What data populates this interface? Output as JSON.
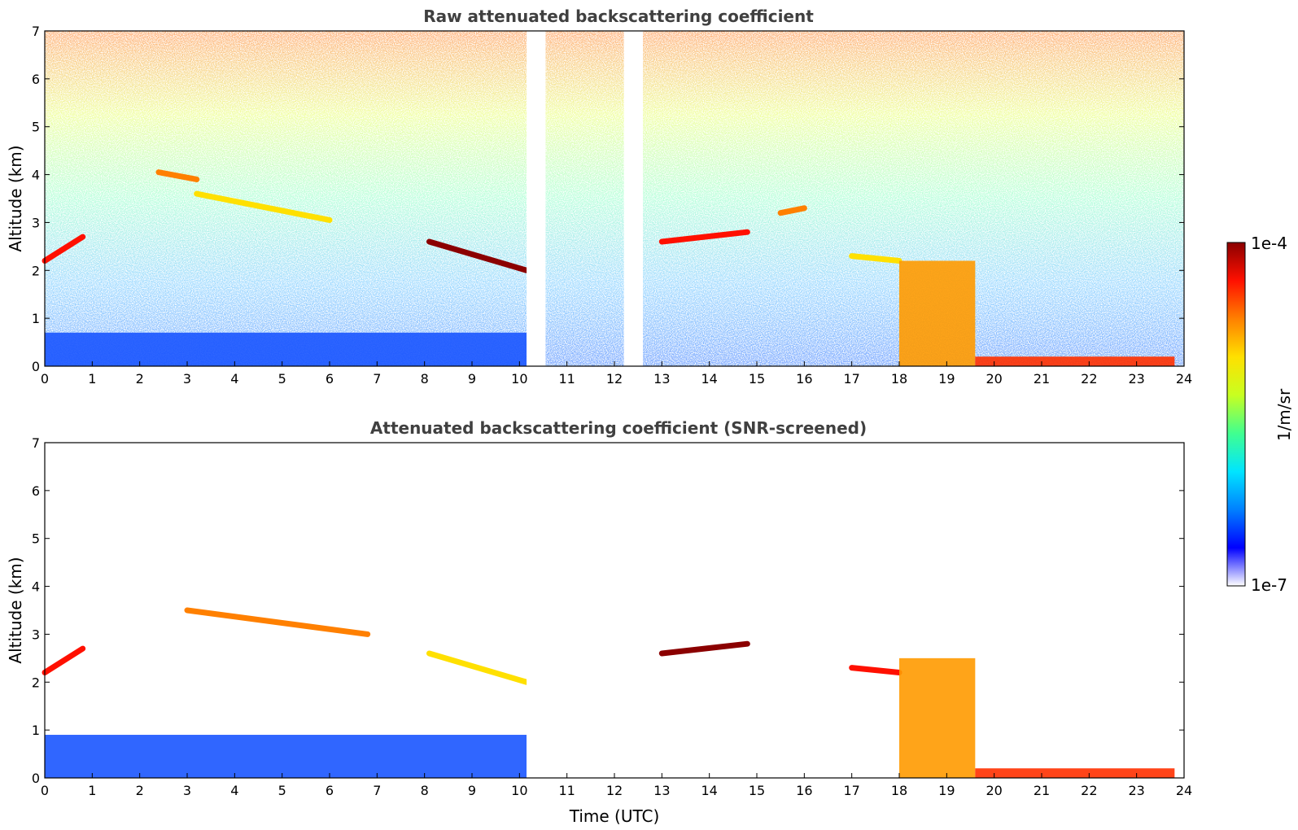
{
  "colors": {
    "colormap": [
      "#ffffff",
      "#0000ff",
      "#0080ff",
      "#00e5ff",
      "#40ff90",
      "#c8ff20",
      "#ffe000",
      "#ff8000",
      "#ff1000",
      "#8b0000"
    ],
    "axis": "#000000",
    "title": "#404040"
  },
  "colorbar": {
    "label": "1/m/sr",
    "max_label": "1e-4",
    "min_label": "1e-7",
    "range": [
      1e-07,
      0.0001
    ],
    "scale": "log"
  },
  "x_axis": {
    "label": "Time (UTC)",
    "range": [
      0,
      24
    ],
    "ticks": [
      "0",
      "1",
      "2",
      "3",
      "4",
      "5",
      "6",
      "7",
      "8",
      "9",
      "10",
      "11",
      "12",
      "13",
      "14",
      "15",
      "16",
      "17",
      "18",
      "19",
      "20",
      "21",
      "22",
      "23",
      "24"
    ]
  },
  "chart_data": [
    {
      "type": "heatmap",
      "title": "Raw attenuated backscattering coefficient",
      "xlabel": "",
      "ylabel": "Altitude (km)",
      "xlim": [
        0,
        24
      ],
      "ylim": [
        0,
        7
      ],
      "yticks": [
        "0",
        "1",
        "2",
        "3",
        "4",
        "5",
        "6",
        "7"
      ],
      "data_gaps_utc": [
        [
          10.15,
          10.55
        ],
        [
          12.2,
          12.6
        ]
      ],
      "features": [
        {
          "kind": "surface_layer",
          "x": [
            0,
            10.15
          ],
          "y_top": 0.7
        },
        {
          "kind": "cloud_layer",
          "x": [
            0,
            0.8
          ],
          "y": [
            2.2,
            2.7
          ]
        },
        {
          "kind": "cloud_layer",
          "x": [
            2.4,
            3.2
          ],
          "y": [
            4.05,
            3.9
          ]
        },
        {
          "kind": "cloud_layer",
          "x": [
            3.2,
            6.0
          ],
          "y": [
            3.6,
            3.05
          ]
        },
        {
          "kind": "cloud_layer",
          "x": [
            8.1,
            10.15
          ],
          "y": [
            2.6,
            2.0
          ]
        },
        {
          "kind": "cloud_layer",
          "x": [
            13.0,
            14.8
          ],
          "y": [
            2.6,
            2.8
          ]
        },
        {
          "kind": "cloud_layer",
          "x": [
            15.5,
            16.0
          ],
          "y": [
            3.2,
            3.3
          ]
        },
        {
          "kind": "cloud_layer",
          "x": [
            17.0,
            18.0
          ],
          "y": [
            2.3,
            2.2
          ]
        },
        {
          "kind": "precipitation",
          "x": [
            18.0,
            19.6
          ],
          "y_top": 2.2
        },
        {
          "kind": "surface_layer",
          "x": [
            19.6,
            23.8
          ],
          "y_top": 0.2
        }
      ]
    },
    {
      "type": "heatmap",
      "title": "Attenuated backscattering coefficient (SNR-screened)",
      "xlabel": "Time (UTC)",
      "ylabel": "Altitude (km)",
      "xlim": [
        0,
        24
      ],
      "ylim": [
        0,
        7
      ],
      "yticks": [
        "0",
        "1",
        "2",
        "3",
        "4",
        "5",
        "6",
        "7"
      ],
      "data_gaps_utc": [
        [
          10.15,
          10.55
        ],
        [
          12.2,
          12.6
        ]
      ],
      "features": [
        {
          "kind": "surface_layer",
          "x": [
            0,
            10.15
          ],
          "y_top": 0.9
        },
        {
          "kind": "cloud_layer",
          "x": [
            0,
            0.8
          ],
          "y": [
            2.2,
            2.7
          ]
        },
        {
          "kind": "cloud_layer",
          "x": [
            3.0,
            6.8
          ],
          "y": [
            3.5,
            3.0
          ]
        },
        {
          "kind": "cloud_layer",
          "x": [
            8.1,
            10.15
          ],
          "y": [
            2.6,
            2.0
          ]
        },
        {
          "kind": "cloud_layer",
          "x": [
            13.0,
            14.8
          ],
          "y": [
            2.6,
            2.8
          ]
        },
        {
          "kind": "cloud_layer",
          "x": [
            17.0,
            18.0
          ],
          "y": [
            2.3,
            2.2
          ]
        },
        {
          "kind": "precipitation",
          "x": [
            18.0,
            19.6
          ],
          "y_top": 2.5
        },
        {
          "kind": "surface_layer",
          "x": [
            19.6,
            23.8
          ],
          "y_top": 0.2
        }
      ]
    }
  ]
}
